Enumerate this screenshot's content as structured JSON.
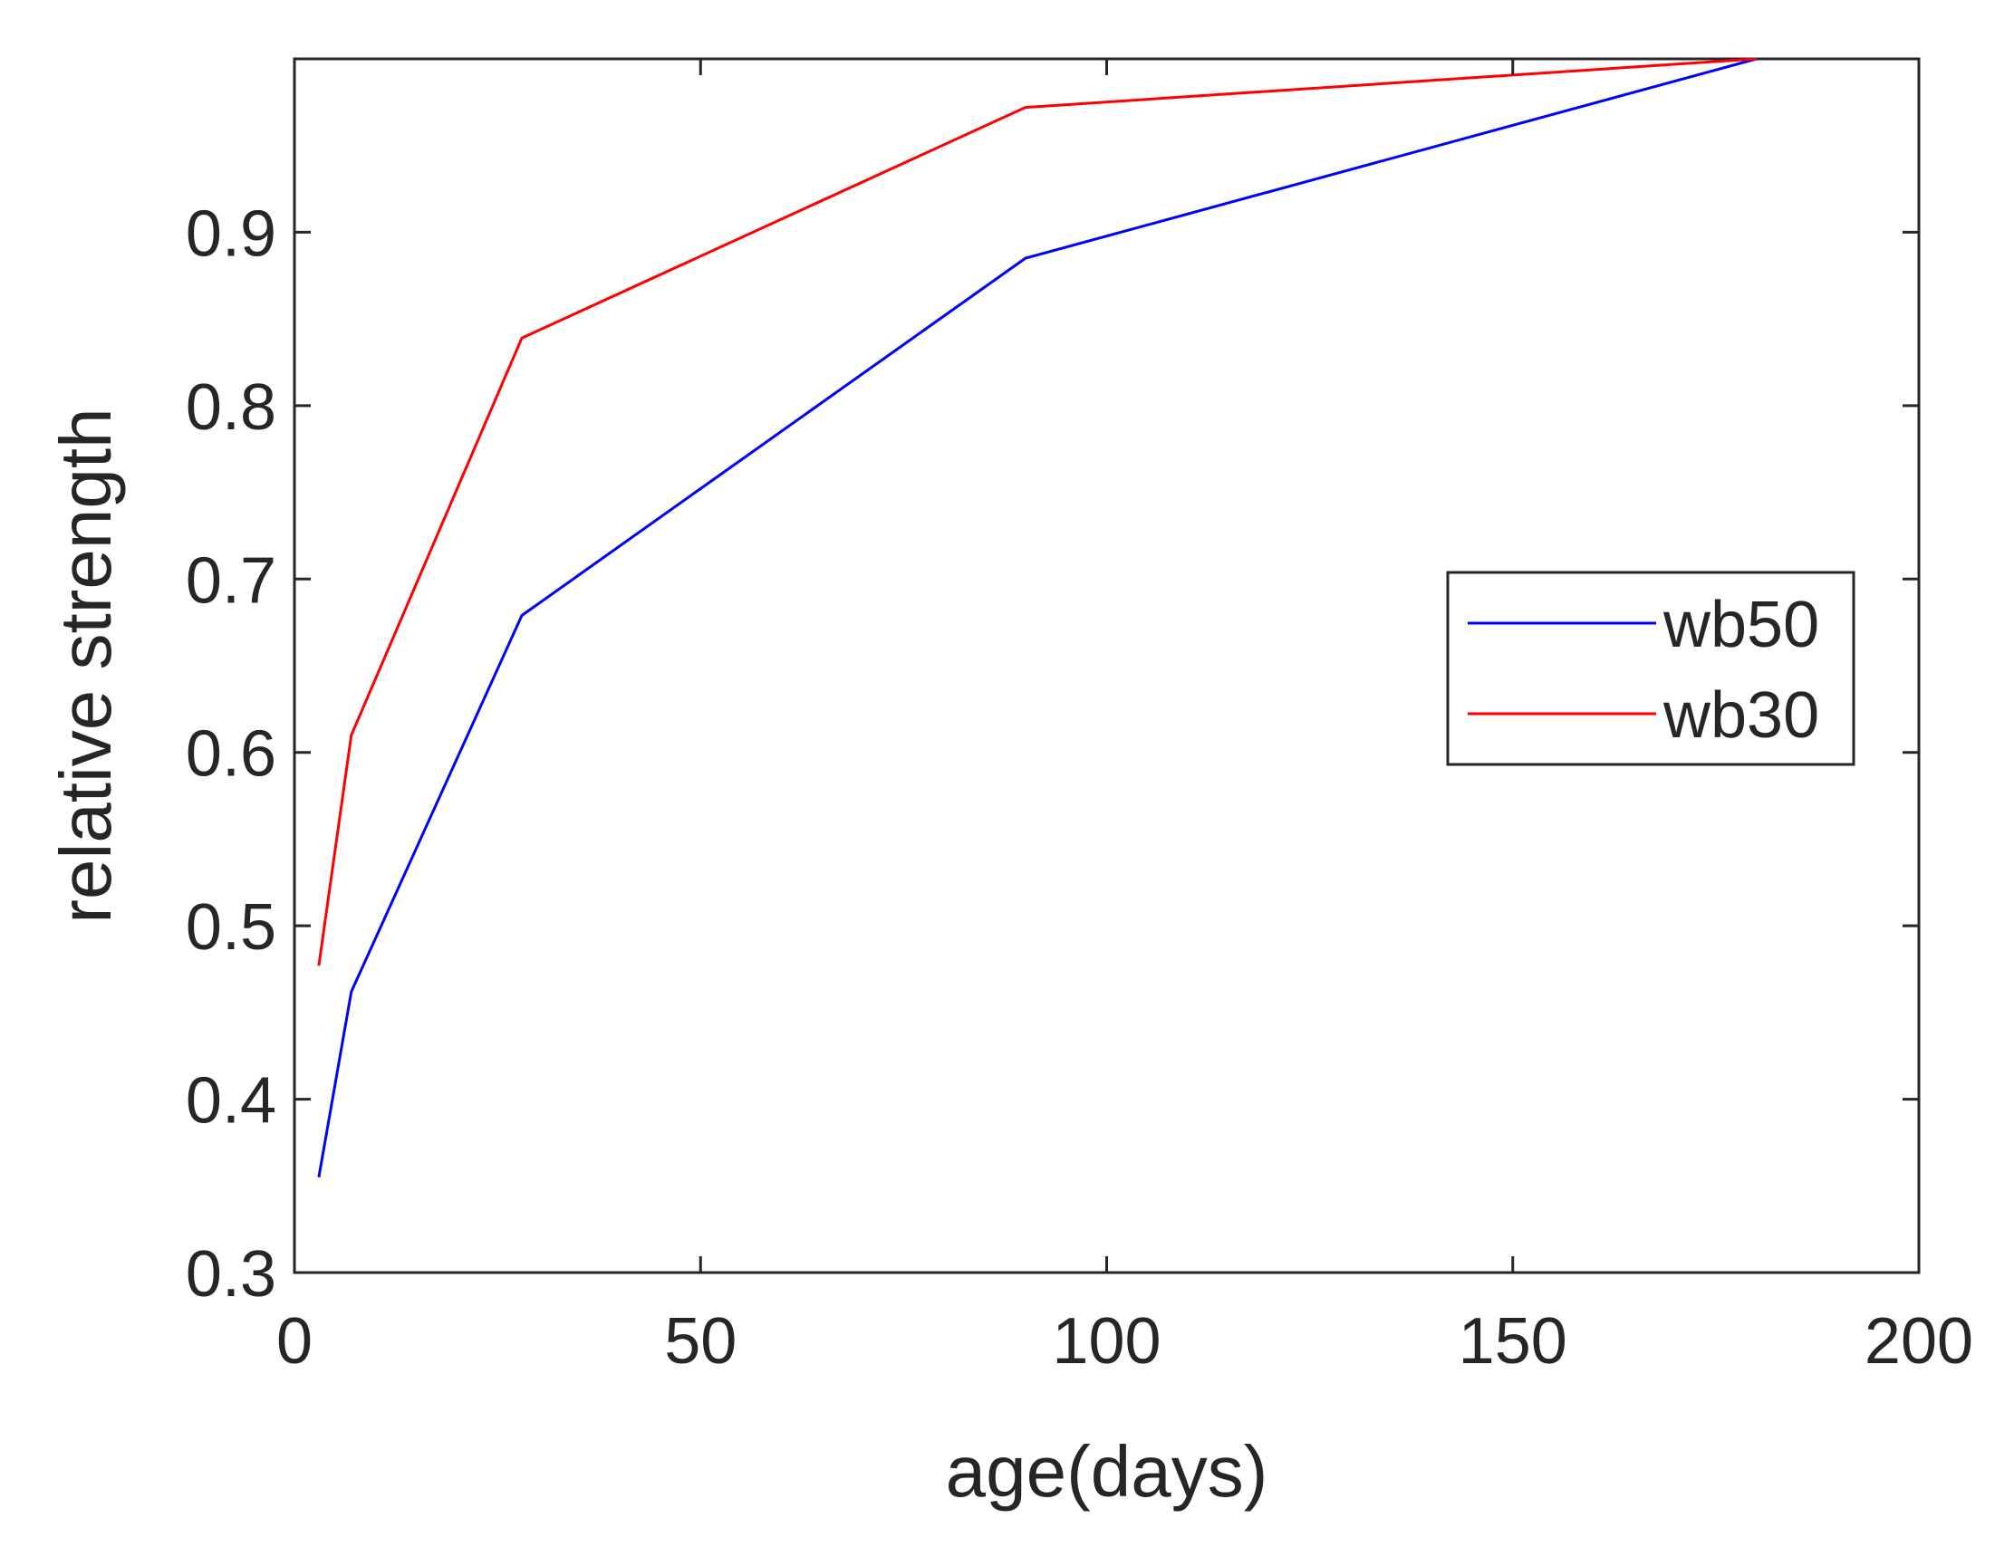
{
  "chart_data": {
    "type": "line",
    "title": "",
    "xlabel": "age(days)",
    "ylabel": "relative strength",
    "xlim": [
      0,
      200
    ],
    "ylim": [
      0.3,
      1.0
    ],
    "xticks": [
      0,
      50,
      100,
      150,
      200
    ],
    "yticks": [
      0.3,
      0.4,
      0.5,
      0.6,
      0.7,
      0.8,
      0.9
    ],
    "xtick_labels": [
      "0",
      "50",
      "100",
      "150",
      "200"
    ],
    "ytick_labels": [
      "0.3",
      "0.4",
      "0.5",
      "0.6",
      "0.7",
      "0.8",
      "0.9"
    ],
    "grid": false,
    "legend_position": "right",
    "series": [
      {
        "name": "wb50",
        "color": "#0000ff",
        "x": [
          3,
          7,
          28,
          90,
          180
        ],
        "y": [
          0.355,
          0.462,
          0.679,
          0.885,
          1.0
        ]
      },
      {
        "name": "wb30",
        "color": "#ff0000",
        "x": [
          3,
          7,
          28,
          90,
          180
        ],
        "y": [
          0.477,
          0.61,
          0.839,
          0.972,
          1.0
        ]
      }
    ]
  }
}
